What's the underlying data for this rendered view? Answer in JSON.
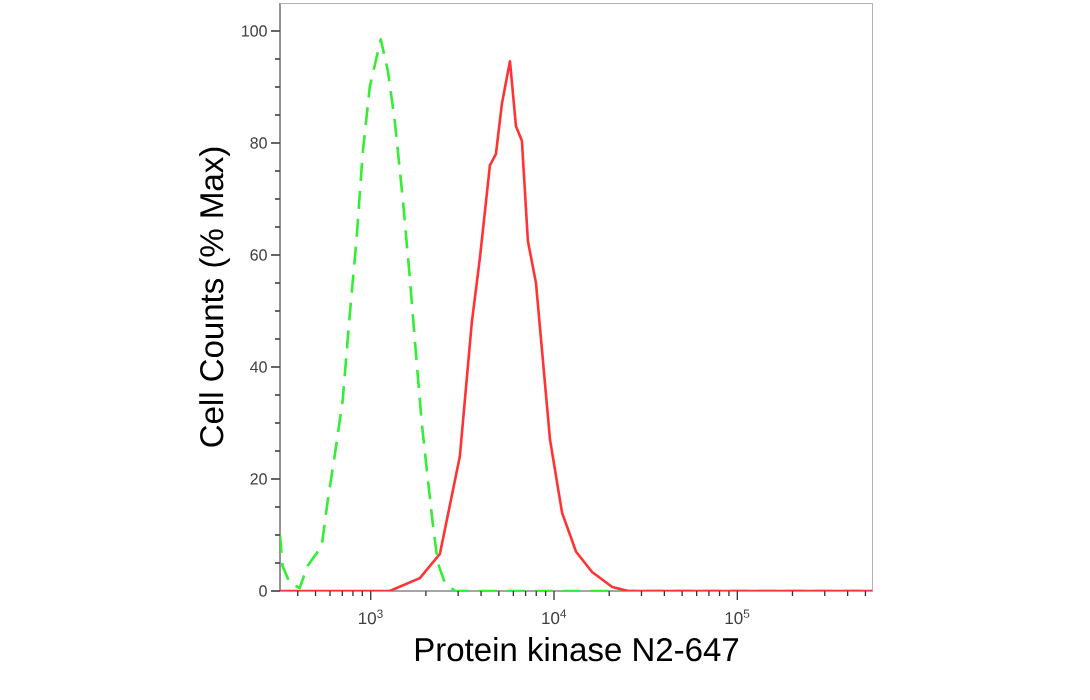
{
  "chart_data": {
    "type": "line",
    "xlabel": "Protein kinase N2-647",
    "ylabel": "Cell Counts (% Max)",
    "log": "x",
    "xlim": [
      320,
      550000
    ],
    "ylim": [
      0,
      105
    ],
    "xticks": [
      {
        "value": 400,
        "label": null
      },
      {
        "value": 500,
        "label": null
      },
      {
        "value": 600,
        "label": null
      },
      {
        "value": 700,
        "label": null
      },
      {
        "value": 800,
        "label": null
      },
      {
        "value": 900,
        "label": null
      },
      {
        "value": 1000,
        "label": "10$^{3}$"
      },
      {
        "value": 2000,
        "label": null
      },
      {
        "value": 3000,
        "label": null
      },
      {
        "value": 4000,
        "label": null
      },
      {
        "value": 5000,
        "label": null
      },
      {
        "value": 6000,
        "label": null
      },
      {
        "value": 7000,
        "label": null
      },
      {
        "value": 8000,
        "label": null
      },
      {
        "value": 9000,
        "label": null
      },
      {
        "value": 10000,
        "label": "10$^{4}$"
      },
      {
        "value": 20000,
        "label": null
      },
      {
        "value": 30000,
        "label": null
      },
      {
        "value": 40000,
        "label": null
      },
      {
        "value": 50000,
        "label": null
      },
      {
        "value": 60000,
        "label": null
      },
      {
        "value": 70000,
        "label": null
      },
      {
        "value": 80000,
        "label": null
      },
      {
        "value": 90000,
        "label": null
      },
      {
        "value": 100000,
        "label": "10$^{5}$"
      },
      {
        "value": 200000,
        "label": null
      },
      {
        "value": 300000,
        "label": null
      },
      {
        "value": 400000,
        "label": null
      },
      {
        "value": 500000,
        "label": null
      }
    ],
    "yticks": [
      0,
      {
        "value": 5,
        "label": null
      },
      {
        "value": 10,
        "label": null
      },
      {
        "value": 15,
        "label": null
      },
      20,
      {
        "value": 25,
        "label": null
      },
      {
        "value": 30,
        "label": null
      },
      {
        "value": 35,
        "label": null
      },
      40,
      {
        "value": 45,
        "label": null
      },
      {
        "value": 50,
        "label": null
      },
      {
        "value": 55,
        "label": null
      },
      60,
      {
        "value": 65,
        "label": null
      },
      {
        "value": 70,
        "label": null
      },
      {
        "value": 75,
        "label": null
      },
      80,
      {
        "value": 85,
        "label": null
      },
      {
        "value": 90,
        "label": null
      },
      {
        "value": 95,
        "label": null
      },
      100
    ],
    "series": [
      {
        "color": "#33ee33",
        "line_style": "dashed",
        "x": [
          320,
          330,
          361,
          409,
          453,
          540,
          582,
          635,
          703,
          767,
          838,
          903,
          988,
          1134,
          1239,
          1352,
          1496,
          1634,
          1738,
          1899,
          2048,
          2181,
          2324,
          2535,
          2876,
          550000
        ],
        "values": [
          10,
          4.5,
          1.5,
          0.5,
          4.5,
          8,
          16,
          24,
          34,
          49,
          63,
          78,
          90,
          98.5,
          93,
          84,
          70,
          56,
          45,
          30,
          20,
          12,
          5,
          1.5,
          0,
          0
        ]
      },
      {
        "color": "#ff3333",
        "line_style": "solid",
        "x": [
          320,
          1270,
          1853,
          2384,
          3063,
          3562,
          3943,
          4470,
          4818,
          5196,
          5749,
          6200,
          6680,
          7204,
          7973,
          9513,
          11060,
          13190,
          16130,
          20780,
          25370,
          550000
        ],
        "values": [
          0,
          0,
          2.3,
          6.6,
          24,
          48,
          59.5,
          76,
          78,
          87,
          94.6,
          83,
          80.4,
          62.5,
          55,
          27,
          14,
          7,
          3.4,
          0.7,
          0,
          0
        ]
      }
    ]
  }
}
